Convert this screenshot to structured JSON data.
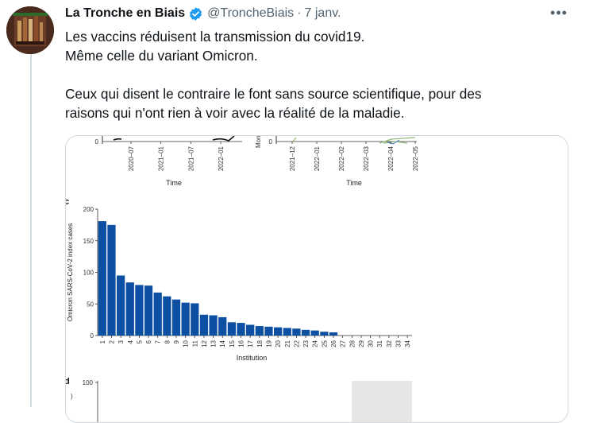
{
  "tweet": {
    "author_name": "La Tronche en Biais",
    "handle": "@TroncheBiais",
    "separator": "·",
    "date": "7 janv.",
    "more_label": "•••",
    "text_lines": [
      "Les vaccins réduisent la transmission du covid19.",
      "Même celle du variant Omicron.",
      "",
      "Ceux qui disent le contraire le font sans source scientifique, pour des",
      "raisons qui n'ont rien à voir avec la réalité de la maladie."
    ]
  },
  "figure": {
    "top_left": {
      "y_zero": "0",
      "ticks": [
        "2020–07",
        "2021–01",
        "2021–07",
        "2022–01"
      ],
      "xlabel": "Time"
    },
    "top_right": {
      "y_zero": "0",
      "ylabel_fragment": "Mon",
      "ticks": [
        "2021–12",
        "2022–01",
        "2022–02",
        "2022–03",
        "2022–04",
        "2022–05"
      ],
      "xlabel": "Time"
    },
    "panel_c_label": "c",
    "panel_d_label": "d",
    "panel_d_ytick": "100"
  },
  "chart_data": {
    "type": "bar",
    "title": "",
    "xlabel": "Institution",
    "ylabel": "Omicron SARS-CoV-2 index cases",
    "ylim": [
      0,
      200
    ],
    "yticks": [
      0,
      50,
      100,
      150,
      200
    ],
    "categories": [
      "1",
      "2",
      "3",
      "4",
      "5",
      "6",
      "7",
      "8",
      "9",
      "10",
      "11",
      "12",
      "13",
      "14",
      "15",
      "16",
      "17",
      "18",
      "19",
      "20",
      "21",
      "22",
      "23",
      "24",
      "25",
      "26",
      "27",
      "28",
      "29",
      "30",
      "31",
      "32",
      "33",
      "34"
    ],
    "values": [
      181,
      175,
      95,
      84,
      80,
      79,
      68,
      62,
      57,
      52,
      51,
      33,
      32,
      29,
      21,
      20,
      17,
      15,
      14,
      13,
      12,
      11,
      9,
      8,
      6,
      5,
      0,
      0,
      0,
      0,
      0,
      0,
      0,
      0
    ],
    "bar_color": "#0d4fa3",
    "grid": false
  }
}
